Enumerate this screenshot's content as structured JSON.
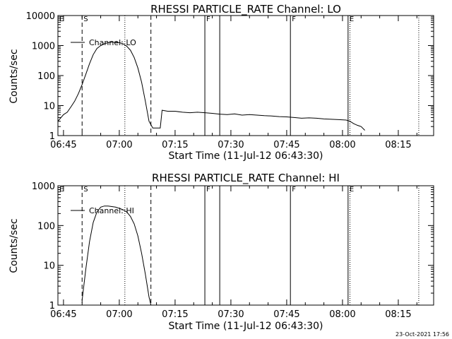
{
  "footer": {
    "date": "23-Oct-2021 17:56"
  },
  "chart_data": [
    {
      "type": "line",
      "title": "RHESSI PARTICLE_RATE Channel: LO",
      "xlabel": "Start Time (11-Jul-12 06:43:30)",
      "ylabel": "Counts/sec",
      "yscale": "log",
      "xlim": [
        "06:43:30",
        "08:24:30"
      ],
      "ylim": [
        1,
        10000
      ],
      "xticks": [
        "06:45",
        "07:00",
        "07:15",
        "07:30",
        "07:45",
        "08:00",
        "08:15"
      ],
      "yticks": [
        "1",
        "10",
        "100",
        "1000",
        "10000"
      ],
      "legend": "Channel: LO",
      "markers": [
        {
          "label": "E",
          "time": "06:43:30",
          "style": "solid"
        },
        {
          "label": "S",
          "time": "06:50:00",
          "style": "dashed"
        },
        {
          "label": "",
          "time": "07:01:30",
          "style": "dotted"
        },
        {
          "label": "",
          "time": "07:08:30",
          "style": "dashed"
        },
        {
          "label": "F",
          "time": "07:23:00",
          "style": "solid"
        },
        {
          "label": "",
          "time": "07:27:00",
          "style": "solid"
        },
        {
          "label": "F",
          "time": "07:46:00",
          "style": "solid"
        },
        {
          "label": "E",
          "time": "08:01:30",
          "style": "solid"
        },
        {
          "label": "",
          "time": "08:02:00",
          "style": "dotted"
        },
        {
          "label": "",
          "time": "08:20:30",
          "style": "dotted"
        }
      ],
      "series": [
        {
          "x": [
            "06:43:30",
            "06:45:00",
            "06:46:00",
            "06:47:00",
            "06:48:00",
            "06:49:00",
            "06:50:00",
            "06:51:00",
            "06:52:00",
            "06:53:00",
            "06:54:00",
            "06:55:00",
            "06:56:00",
            "06:57:00",
            "06:58:00",
            "06:59:00",
            "07:00:00",
            "07:01:00",
            "07:02:00",
            "07:03:00",
            "07:04:00",
            "07:05:00",
            "07:06:00",
            "07:07:00",
            "07:08:00",
            "07:09:00",
            "07:09:30",
            "07:11:00",
            "07:11:30",
            "07:13:00",
            "07:15:00",
            "07:17:00",
            "07:19:00",
            "07:21:00",
            "07:23:00",
            "07:25:00",
            "07:27:00",
            "07:29:00",
            "07:31:00",
            "07:33:00",
            "07:35:00",
            "07:37:00",
            "07:39:00",
            "07:41:00",
            "07:43:00",
            "07:45:00",
            "07:47:00",
            "07:49:00",
            "07:51:00",
            "07:53:00",
            "07:55:00",
            "07:57:00",
            "07:59:00",
            "08:01:00",
            "08:02:00",
            "08:03:00",
            "08:04:00",
            "08:05:00",
            "08:06:00"
          ],
          "y": [
            3,
            5,
            6,
            9,
            14,
            25,
            50,
            110,
            250,
            500,
            800,
            1000,
            1150,
            1250,
            1300,
            1300,
            1250,
            1150,
            950,
            700,
            400,
            180,
            60,
            14,
            3,
            1.8,
            1.8,
            1.8,
            7,
            6.5,
            6.5,
            6,
            5.8,
            6,
            5.8,
            5.5,
            5.2,
            5,
            5.3,
            4.8,
            5,
            4.8,
            4.6,
            4.5,
            4.3,
            4.2,
            4,
            3.8,
            3.9,
            3.8,
            3.6,
            3.5,
            3.4,
            3.3,
            3,
            2.5,
            2.2,
            2,
            1.5
          ]
        }
      ]
    },
    {
      "type": "line",
      "title": "RHESSI PARTICLE_RATE Channel: HI",
      "xlabel": "Start Time (11-Jul-12 06:43:30)",
      "ylabel": "Counts/sec",
      "yscale": "log",
      "xlim": [
        "06:43:30",
        "08:24:30"
      ],
      "ylim": [
        1,
        1000
      ],
      "xticks": [
        "06:45",
        "07:00",
        "07:15",
        "07:30",
        "07:45",
        "08:00",
        "08:15"
      ],
      "yticks": [
        "1",
        "10",
        "100",
        "1000"
      ],
      "legend": "Channel: HI",
      "markers": [
        {
          "label": "E",
          "time": "06:43:30",
          "style": "solid"
        },
        {
          "label": "S",
          "time": "06:50:00",
          "style": "dashed"
        },
        {
          "label": "",
          "time": "07:01:30",
          "style": "dotted"
        },
        {
          "label": "",
          "time": "07:08:30",
          "style": "dashed"
        },
        {
          "label": "F",
          "time": "07:23:00",
          "style": "solid"
        },
        {
          "label": "",
          "time": "07:27:00",
          "style": "solid"
        },
        {
          "label": "F",
          "time": "07:46:00",
          "style": "solid"
        },
        {
          "label": "E",
          "time": "08:01:30",
          "style": "solid"
        },
        {
          "label": "",
          "time": "08:02:00",
          "style": "dotted"
        },
        {
          "label": "",
          "time": "08:20:30",
          "style": "dotted"
        }
      ],
      "series": [
        {
          "x": [
            "06:50:00",
            "06:51:00",
            "06:52:00",
            "06:53:00",
            "06:54:00",
            "06:55:00",
            "06:56:00",
            "06:57:00",
            "06:58:00",
            "06:59:00",
            "07:00:00",
            "07:01:00",
            "07:02:00",
            "07:03:00",
            "07:04:00",
            "07:05:00",
            "07:06:00",
            "07:07:00",
            "07:08:00",
            "07:08:30"
          ],
          "y": [
            1.3,
            8,
            40,
            120,
            220,
            290,
            310,
            310,
            300,
            290,
            270,
            250,
            220,
            170,
            110,
            55,
            20,
            6,
            1.6,
            1
          ]
        }
      ]
    }
  ]
}
